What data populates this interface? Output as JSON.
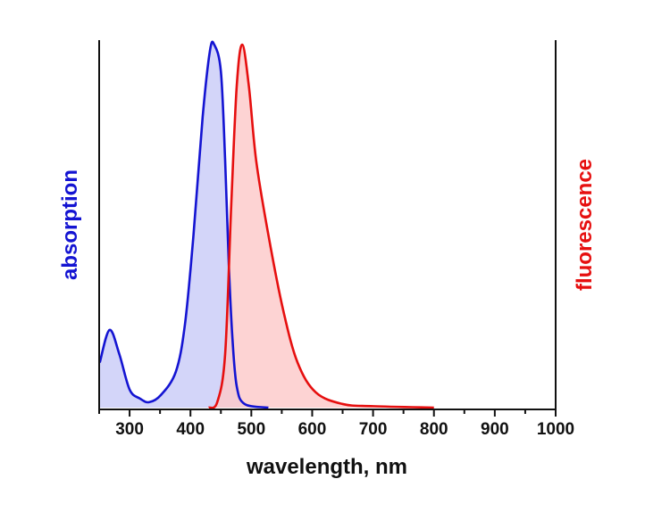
{
  "chart_data": {
    "type": "area",
    "xlabel": "wavelength, nm",
    "ylabel_left": "absorption",
    "ylabel_right": "fluorescence",
    "xlim": [
      250,
      1000
    ],
    "ylim": [
      0,
      1
    ],
    "x_ticks": [
      300,
      400,
      500,
      600,
      700,
      800,
      900,
      1000
    ],
    "x_tick_labels": [
      "300",
      "400",
      "500",
      "600",
      "700",
      "800",
      "900",
      "1000"
    ],
    "y_ticks_shown": false,
    "grid": false,
    "series": [
      {
        "role": "absorption",
        "color": "#1414d2",
        "fill": "#c8cbf7",
        "x": [
          251,
          267,
          283,
          300,
          317,
          332,
          351,
          376,
          391,
          405,
          420,
          432,
          439,
          450,
          457,
          463,
          469,
          476,
          489,
          528
        ],
        "y": [
          0.124,
          0.214,
          0.148,
          0.05,
          0.025,
          0.015,
          0.034,
          0.099,
          0.23,
          0.476,
          0.8,
          0.983,
          1.0,
          0.926,
          0.68,
          0.394,
          0.19,
          0.059,
          0.01,
          0.0
        ]
      },
      {
        "role": "fluorescence",
        "color": "#e60f0f",
        "fill": "#fcc8c8",
        "x": [
          430,
          444,
          457,
          467,
          476,
          485,
          496,
          508,
          528,
          552,
          576,
          606,
          650,
          700,
          800
        ],
        "y": [
          0.0,
          0.015,
          0.148,
          0.558,
          0.885,
          1.0,
          0.885,
          0.68,
          0.476,
          0.271,
          0.124,
          0.042,
          0.01,
          0.004,
          0.0
        ]
      }
    ]
  }
}
